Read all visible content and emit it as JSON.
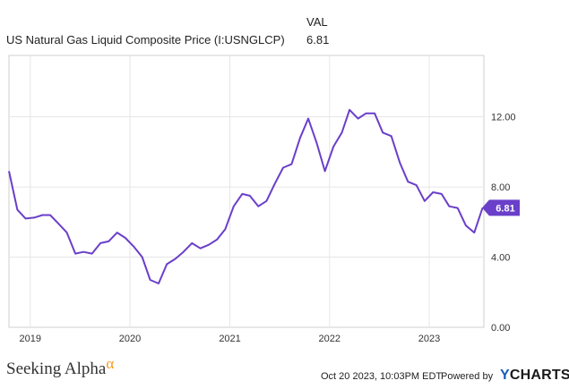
{
  "legend": {
    "header": "VAL",
    "series_label": "US Natural Gas Liquid Composite Price (I:USNGLCP)",
    "series_value": "6.81"
  },
  "footer": {
    "brand": "Seeking Alpha",
    "brand_mark": "α",
    "timestamp": "Oct 20 2023, 10:03PM EDT.",
    "powered_by": "Powered by",
    "logo_y": "Y",
    "logo_rest": "CHARTS"
  },
  "colors": {
    "series": "#6a3fc9",
    "grid": "#e6e6e6",
    "frame": "#cfcfcf",
    "tick_text": "#333333"
  },
  "chart_data": {
    "type": "line",
    "title": "",
    "xlabel": "",
    "ylabel": "",
    "ylim": [
      0,
      15.5
    ],
    "xlim": [
      "2018-10-15",
      "2023-07-20"
    ],
    "grid": true,
    "y_axis_side": "right",
    "x_ticks": [
      {
        "date": "2019-01-01",
        "label": "2019"
      },
      {
        "date": "2020-01-01",
        "label": "2020"
      },
      {
        "date": "2021-01-01",
        "label": "2021"
      },
      {
        "date": "2022-01-01",
        "label": "2022"
      },
      {
        "date": "2023-01-01",
        "label": "2023"
      }
    ],
    "y_ticks": [
      {
        "value": 0,
        "label": "0.00"
      },
      {
        "value": 4,
        "label": "4.00"
      },
      {
        "value": 8,
        "label": "8.00"
      },
      {
        "value": 12,
        "label": "12.00"
      }
    ],
    "last_value_label": "6.81",
    "series": [
      {
        "name": "US Natural Gas Liquid Composite Price (I:USNGLCP)",
        "points": [
          [
            "2018-10-15",
            8.9
          ],
          [
            "2018-11-15",
            6.7
          ],
          [
            "2018-12-15",
            6.2
          ],
          [
            "2019-01-15",
            6.25
          ],
          [
            "2019-02-15",
            6.4
          ],
          [
            "2019-03-15",
            6.4
          ],
          [
            "2019-04-15",
            5.9
          ],
          [
            "2019-05-15",
            5.4
          ],
          [
            "2019-06-15",
            4.2
          ],
          [
            "2019-07-15",
            4.3
          ],
          [
            "2019-08-15",
            4.2
          ],
          [
            "2019-09-15",
            4.8
          ],
          [
            "2019-10-15",
            4.9
          ],
          [
            "2019-11-15",
            5.4
          ],
          [
            "2019-12-15",
            5.1
          ],
          [
            "2020-01-15",
            4.6
          ],
          [
            "2020-02-15",
            4.0
          ],
          [
            "2020-03-15",
            2.7
          ],
          [
            "2020-04-15",
            2.5
          ],
          [
            "2020-05-15",
            3.6
          ],
          [
            "2020-06-15",
            3.9
          ],
          [
            "2020-07-15",
            4.3
          ],
          [
            "2020-08-15",
            4.8
          ],
          [
            "2020-09-15",
            4.5
          ],
          [
            "2020-10-15",
            4.7
          ],
          [
            "2020-11-15",
            5.0
          ],
          [
            "2020-12-15",
            5.6
          ],
          [
            "2021-01-15",
            6.9
          ],
          [
            "2021-02-15",
            7.6
          ],
          [
            "2021-03-15",
            7.5
          ],
          [
            "2021-04-15",
            6.9
          ],
          [
            "2021-05-15",
            7.2
          ],
          [
            "2021-06-15",
            8.2
          ],
          [
            "2021-07-15",
            9.1
          ],
          [
            "2021-08-15",
            9.3
          ],
          [
            "2021-09-15",
            10.8
          ],
          [
            "2021-10-15",
            11.9
          ],
          [
            "2021-11-15",
            10.5
          ],
          [
            "2021-12-15",
            8.9
          ],
          [
            "2022-01-15",
            10.3
          ],
          [
            "2022-02-15",
            11.1
          ],
          [
            "2022-03-15",
            12.4
          ],
          [
            "2022-04-15",
            11.9
          ],
          [
            "2022-05-15",
            12.2
          ],
          [
            "2022-06-15",
            12.2
          ],
          [
            "2022-07-15",
            11.1
          ],
          [
            "2022-08-15",
            10.9
          ],
          [
            "2022-09-15",
            9.4
          ],
          [
            "2022-10-15",
            8.3
          ],
          [
            "2022-11-15",
            8.1
          ],
          [
            "2022-12-15",
            7.2
          ],
          [
            "2023-01-15",
            7.7
          ],
          [
            "2023-02-15",
            7.6
          ],
          [
            "2023-03-15",
            6.9
          ],
          [
            "2023-04-15",
            6.8
          ],
          [
            "2023-05-15",
            5.8
          ],
          [
            "2023-06-15",
            5.4
          ],
          [
            "2023-07-15",
            6.81
          ]
        ]
      }
    ]
  }
}
